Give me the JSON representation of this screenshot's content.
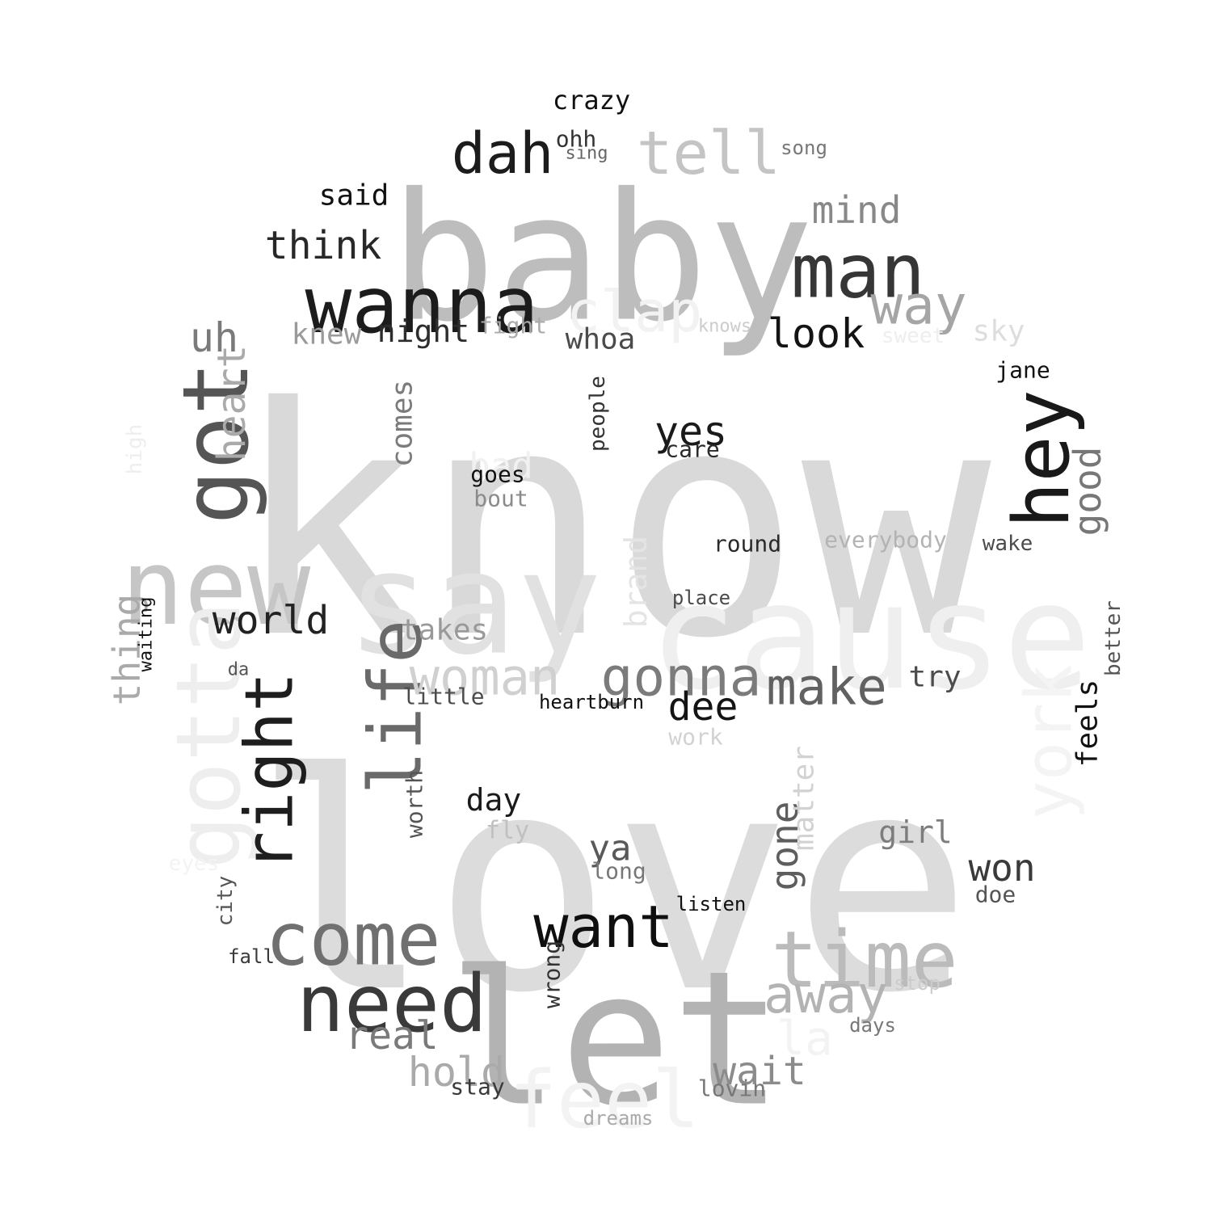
{
  "words": [
    {
      "text": "know",
      "color": "#d9d9d9"
    },
    {
      "text": "love",
      "color": "#dcdcdc"
    },
    {
      "text": "baby",
      "color": "#bdbdbd"
    },
    {
      "text": "cause",
      "color": "#efefef"
    },
    {
      "text": "say",
      "color": "#e1e1e1"
    },
    {
      "text": "new",
      "color": "#c6c6c6"
    },
    {
      "text": "let",
      "color": "#b3b3b3"
    },
    {
      "text": "wanna",
      "color": "#1c1c1c"
    },
    {
      "text": "man",
      "color": "#363636"
    },
    {
      "text": "need",
      "color": "#3a3a3a"
    },
    {
      "text": "come",
      "color": "#707070"
    },
    {
      "text": "hey",
      "color": "#191919"
    },
    {
      "text": "got",
      "color": "#555555"
    },
    {
      "text": "time",
      "color": "#bbbbbb"
    },
    {
      "text": "gotta",
      "color": "#eeeeee"
    },
    {
      "text": "right",
      "color": "#1e1e1e"
    },
    {
      "text": "life",
      "color": "#6a6a6a"
    },
    {
      "text": "feel",
      "color": "#f3f3f3"
    },
    {
      "text": "york",
      "color": "#f4f4f4"
    },
    {
      "text": "dah",
      "color": "#1c1c1c"
    },
    {
      "text": "tell",
      "color": "#c4c4c4"
    },
    {
      "text": "clap",
      "color": "#f2f2f2"
    },
    {
      "text": "want",
      "color": "#0f0f0f"
    },
    {
      "text": "way",
      "color": "#a5a5a5"
    },
    {
      "text": "gonna",
      "color": "#7b7b7b"
    },
    {
      "text": "make",
      "color": "#616161"
    },
    {
      "text": "woman",
      "color": "#d0d0d0"
    },
    {
      "text": "away",
      "color": "#b3b3b3"
    },
    {
      "text": "yes",
      "color": "#1a1a1a"
    },
    {
      "text": "look",
      "color": "#141414"
    },
    {
      "text": "world",
      "color": "#222222"
    },
    {
      "text": "think",
      "color": "#282828"
    },
    {
      "text": "mind",
      "color": "#888888"
    },
    {
      "text": "heart",
      "color": "#aaaaaa"
    },
    {
      "text": "uh",
      "color": "#7a7a7a"
    },
    {
      "text": "wait",
      "color": "#8b8b8b"
    },
    {
      "text": "real",
      "color": "#7a7a7a"
    },
    {
      "text": "hold",
      "color": "#aaaaaa"
    },
    {
      "text": "dee",
      "color": "#141414"
    },
    {
      "text": "won",
      "color": "#3a3a3a"
    },
    {
      "text": "la",
      "color": "#f3f3f3"
    },
    {
      "text": "good",
      "color": "#777777"
    },
    {
      "text": "thing",
      "color": "#aaaaaa"
    },
    {
      "text": "gone",
      "color": "#5e5e5e"
    },
    {
      "text": "ya",
      "color": "#595959"
    },
    {
      "text": "day",
      "color": "#1a1a1a"
    },
    {
      "text": "bad",
      "color": "#f1f1f1"
    },
    {
      "text": "said",
      "color": "#111111"
    },
    {
      "text": "night",
      "color": "#2d2d2d"
    },
    {
      "text": "crazy",
      "color": "#111111"
    },
    {
      "text": "girl",
      "color": "#7d7d7d"
    },
    {
      "text": "try",
      "color": "#4b4b4b"
    },
    {
      "text": "knew",
      "color": "#9a9a9a"
    },
    {
      "text": "whoa",
      "color": "#4b4b4b"
    },
    {
      "text": "comes",
      "color": "#7b7b7b"
    },
    {
      "text": "takes",
      "color": "#999999"
    },
    {
      "text": "brand",
      "color": "#e4e4e4"
    },
    {
      "text": "sky",
      "color": "#dddddd"
    },
    {
      "text": "matter",
      "color": "#d2d2d2"
    },
    {
      "text": "feels",
      "color": "#111111"
    },
    {
      "text": "fight",
      "color": "#aaaaaa"
    },
    {
      "text": "ohh",
      "color": "#333333"
    },
    {
      "text": "goes",
      "color": "#111111"
    },
    {
      "text": "round",
      "color": "#2a2a2a"
    },
    {
      "text": "care",
      "color": "#2a2a2a"
    },
    {
      "text": "bout",
      "color": "#8b8b8b"
    },
    {
      "text": "everybody",
      "color": "#b3b3b3"
    },
    {
      "text": "wake",
      "color": "#4b4b4b"
    },
    {
      "text": "jane",
      "color": "#111111"
    },
    {
      "text": "sweet",
      "color": "#eeeeee"
    },
    {
      "text": "people",
      "color": "#333333"
    },
    {
      "text": "place",
      "color": "#4b4b4b"
    },
    {
      "text": "little",
      "color": "#4b4b4b"
    },
    {
      "text": "heartburn",
      "color": "#111111"
    },
    {
      "text": "work",
      "color": "#d2d2d2"
    },
    {
      "text": "worth",
      "color": "#555555"
    },
    {
      "text": "fly",
      "color": "#c0c0c0"
    },
    {
      "text": "long",
      "color": "#777777"
    },
    {
      "text": "listen",
      "color": "#111111"
    },
    {
      "text": "doe",
      "color": "#555555"
    },
    {
      "text": "better",
      "color": "#555555"
    },
    {
      "text": "wrong",
      "color": "#333333"
    },
    {
      "text": "stay",
      "color": "#3a3a3a"
    },
    {
      "text": "lovin",
      "color": "#777777"
    },
    {
      "text": "stop",
      "color": "#cccccc"
    },
    {
      "text": "days",
      "color": "#777777"
    },
    {
      "text": "dreams",
      "color": "#aaaaaa"
    },
    {
      "text": "city",
      "color": "#555555"
    },
    {
      "text": "fall",
      "color": "#3a3a3a"
    },
    {
      "text": "da",
      "color": "#555555"
    },
    {
      "text": "waiting",
      "color": "#111111"
    },
    {
      "text": "high",
      "color": "#eeeeee"
    },
    {
      "text": "eyes",
      "color": "#f3f3f3"
    },
    {
      "text": "sing",
      "color": "#666666"
    },
    {
      "text": "song",
      "color": "#777777"
    },
    {
      "text": "knows",
      "color": "#cccccc"
    }
  ]
}
